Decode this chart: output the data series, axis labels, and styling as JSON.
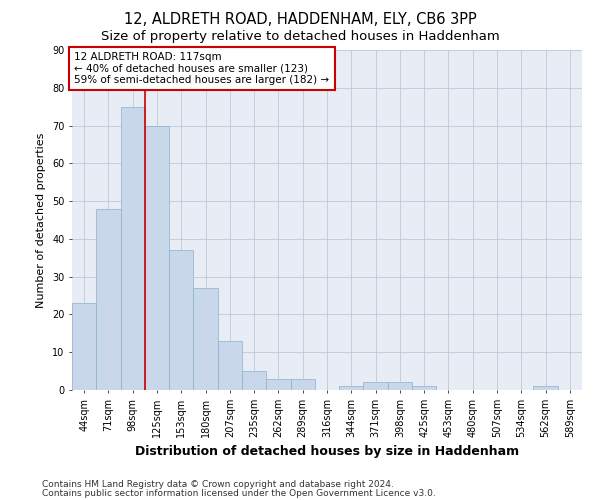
{
  "title_line1": "12, ALDRETH ROAD, HADDENHAM, ELY, CB6 3PP",
  "title_line2": "Size of property relative to detached houses in Haddenham",
  "xlabel": "Distribution of detached houses by size in Haddenham",
  "ylabel": "Number of detached properties",
  "bar_color": "#c8d8ea",
  "bar_edgecolor": "#8ab0cc",
  "bar_linewidth": 0.5,
  "vline_color": "#cc0000",
  "vline_x": 2.5,
  "categories": [
    "44sqm",
    "71sqm",
    "98sqm",
    "125sqm",
    "153sqm",
    "180sqm",
    "207sqm",
    "235sqm",
    "262sqm",
    "289sqm",
    "316sqm",
    "344sqm",
    "371sqm",
    "398sqm",
    "425sqm",
    "453sqm",
    "480sqm",
    "507sqm",
    "534sqm",
    "562sqm",
    "589sqm"
  ],
  "values": [
    23,
    48,
    75,
    70,
    37,
    27,
    13,
    5,
    3,
    3,
    0,
    1,
    2,
    2,
    1,
    0,
    0,
    0,
    0,
    1,
    0
  ],
  "ylim": [
    0,
    90
  ],
  "yticks": [
    0,
    10,
    20,
    30,
    40,
    50,
    60,
    70,
    80,
    90
  ],
  "grid_color": "#c0c8d8",
  "bg_color": "#e8edf5",
  "fig_color": "#ffffff",
  "annotation_text": "12 ALDRETH ROAD: 117sqm\n← 40% of detached houses are smaller (123)\n59% of semi-detached houses are larger (182) →",
  "annotation_box_color": "#ffffff",
  "annotation_box_edgecolor": "#cc0000",
  "footnote_line1": "Contains HM Land Registry data © Crown copyright and database right 2024.",
  "footnote_line2": "Contains public sector information licensed under the Open Government Licence v3.0.",
  "title_fontsize": 10.5,
  "subtitle_fontsize": 9.5,
  "xlabel_fontsize": 9,
  "ylabel_fontsize": 8,
  "tick_fontsize": 7,
  "annotation_fontsize": 7.5,
  "footnote_fontsize": 6.5
}
